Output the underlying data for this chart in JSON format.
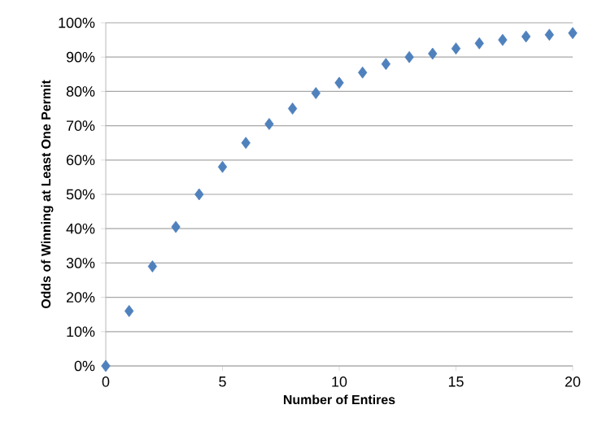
{
  "chart_data": {
    "type": "scatter",
    "xlabel": "Number of Entires",
    "ylabel": "Odds of Winning at Least One Permit",
    "x": [
      0,
      1,
      2,
      3,
      4,
      5,
      6,
      7,
      8,
      9,
      10,
      11,
      12,
      13,
      14,
      15,
      16,
      17,
      18,
      19,
      20
    ],
    "values": [
      0,
      16,
      29,
      40.5,
      50,
      58,
      65,
      70.5,
      75,
      79.5,
      82.5,
      85.5,
      88,
      90,
      91,
      92.5,
      94,
      95,
      96,
      96.5,
      97
    ],
    "color": "#4f81bd",
    "marker": "diamond",
    "grid": "y",
    "xlim": [
      0,
      20
    ],
    "xticks": [
      0,
      5,
      10,
      15,
      20
    ],
    "ylim": [
      0,
      100
    ],
    "yticks": [
      {
        "value": 0,
        "label": "0%"
      },
      {
        "value": 10,
        "label": "10%"
      },
      {
        "value": 20,
        "label": "20%"
      },
      {
        "value": 30,
        "label": "30%"
      },
      {
        "value": 40,
        "label": "40%"
      },
      {
        "value": 50,
        "label": "50%"
      },
      {
        "value": 60,
        "label": "60%"
      },
      {
        "value": 70,
        "label": "70%"
      },
      {
        "value": 80,
        "label": "80%"
      },
      {
        "value": 90,
        "label": "90%"
      },
      {
        "value": 100,
        "label": "100%"
      }
    ]
  }
}
